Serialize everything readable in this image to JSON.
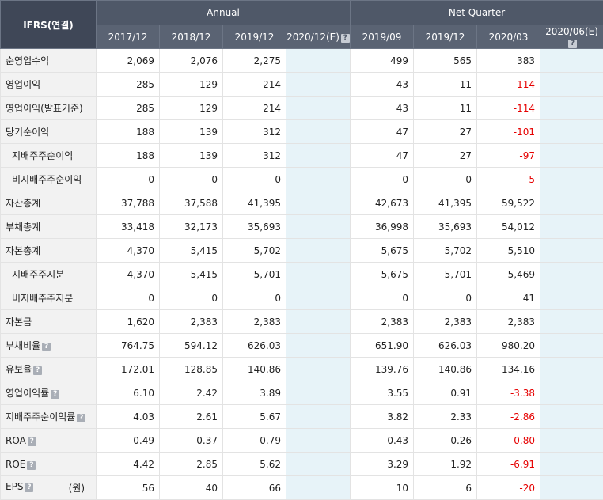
{
  "header": {
    "corner": "IFRS(연결)",
    "annual_label": "Annual",
    "quarter_label": "Net Quarter",
    "annual_periods": [
      "2017/12",
      "2018/12",
      "2019/12",
      "2020/12(E)"
    ],
    "quarter_periods": [
      "2019/09",
      "2019/12",
      "2020/03",
      "2020/06(E)"
    ],
    "help_glyph": "?"
  },
  "rows": [
    {
      "label": "순영업수익",
      "indent": false,
      "help": false,
      "unit": "",
      "annual": [
        "2,069",
        "2,076",
        "2,275",
        ""
      ],
      "quarter": [
        "499",
        "565",
        "383",
        ""
      ]
    },
    {
      "label": "영업이익",
      "indent": false,
      "help": false,
      "unit": "",
      "annual": [
        "285",
        "129",
        "214",
        ""
      ],
      "quarter": [
        "43",
        "11",
        "-114",
        ""
      ]
    },
    {
      "label": "영업이익(발표기준)",
      "indent": false,
      "help": false,
      "unit": "",
      "annual": [
        "285",
        "129",
        "214",
        ""
      ],
      "quarter": [
        "43",
        "11",
        "-114",
        ""
      ]
    },
    {
      "label": "당기순이익",
      "indent": false,
      "help": false,
      "unit": "",
      "annual": [
        "188",
        "139",
        "312",
        ""
      ],
      "quarter": [
        "47",
        "27",
        "-101",
        ""
      ]
    },
    {
      "label": "지배주주순이익",
      "indent": true,
      "help": false,
      "unit": "",
      "annual": [
        "188",
        "139",
        "312",
        ""
      ],
      "quarter": [
        "47",
        "27",
        "-97",
        ""
      ]
    },
    {
      "label": "비지배주주순이익",
      "indent": true,
      "help": false,
      "unit": "",
      "annual": [
        "0",
        "0",
        "0",
        ""
      ],
      "quarter": [
        "0",
        "0",
        "-5",
        ""
      ]
    },
    {
      "label": "자산총계",
      "indent": false,
      "help": false,
      "unit": "",
      "annual": [
        "37,788",
        "37,588",
        "41,395",
        ""
      ],
      "quarter": [
        "42,673",
        "41,395",
        "59,522",
        ""
      ]
    },
    {
      "label": "부채총계",
      "indent": false,
      "help": false,
      "unit": "",
      "annual": [
        "33,418",
        "32,173",
        "35,693",
        ""
      ],
      "quarter": [
        "36,998",
        "35,693",
        "54,012",
        ""
      ]
    },
    {
      "label": "자본총계",
      "indent": false,
      "help": false,
      "unit": "",
      "annual": [
        "4,370",
        "5,415",
        "5,702",
        ""
      ],
      "quarter": [
        "5,675",
        "5,702",
        "5,510",
        ""
      ]
    },
    {
      "label": "지배주주지분",
      "indent": true,
      "help": false,
      "unit": "",
      "annual": [
        "4,370",
        "5,415",
        "5,701",
        ""
      ],
      "quarter": [
        "5,675",
        "5,701",
        "5,469",
        ""
      ]
    },
    {
      "label": "비지배주주지분",
      "indent": true,
      "help": false,
      "unit": "",
      "annual": [
        "0",
        "0",
        "0",
        ""
      ],
      "quarter": [
        "0",
        "0",
        "41",
        ""
      ]
    },
    {
      "label": "자본금",
      "indent": false,
      "help": false,
      "unit": "",
      "annual": [
        "1,620",
        "2,383",
        "2,383",
        ""
      ],
      "quarter": [
        "2,383",
        "2,383",
        "2,383",
        ""
      ]
    },
    {
      "label": "부채비율",
      "indent": false,
      "help": true,
      "unit": "",
      "annual": [
        "764.75",
        "594.12",
        "626.03",
        ""
      ],
      "quarter": [
        "651.90",
        "626.03",
        "980.20",
        ""
      ]
    },
    {
      "label": "유보율",
      "indent": false,
      "help": true,
      "unit": "",
      "annual": [
        "172.01",
        "128.85",
        "140.86",
        ""
      ],
      "quarter": [
        "139.76",
        "140.86",
        "134.16",
        ""
      ]
    },
    {
      "label": "영업이익률",
      "indent": false,
      "help": true,
      "unit": "",
      "annual": [
        "6.10",
        "2.42",
        "3.89",
        ""
      ],
      "quarter": [
        "3.55",
        "0.91",
        "-3.38",
        ""
      ]
    },
    {
      "label": "지배주주순이익률",
      "indent": false,
      "help": true,
      "unit": "",
      "annual": [
        "4.03",
        "2.61",
        "5.67",
        ""
      ],
      "quarter": [
        "3.82",
        "2.33",
        "-2.86",
        ""
      ]
    },
    {
      "label": "ROA",
      "indent": false,
      "help": true,
      "unit": "",
      "annual": [
        "0.49",
        "0.37",
        "0.79",
        ""
      ],
      "quarter": [
        "0.43",
        "0.26",
        "-0.80",
        ""
      ]
    },
    {
      "label": "ROE",
      "indent": false,
      "help": true,
      "unit": "",
      "annual": [
        "4.42",
        "2.85",
        "5.62",
        ""
      ],
      "quarter": [
        "3.29",
        "1.92",
        "-6.91",
        ""
      ]
    },
    {
      "label": "EPS",
      "indent": false,
      "help": true,
      "unit": "(원)",
      "annual": [
        "56",
        "40",
        "66",
        ""
      ],
      "quarter": [
        "10",
        "6",
        "-20",
        ""
      ]
    }
  ]
}
